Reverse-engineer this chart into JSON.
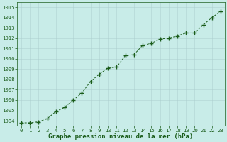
{
  "x": [
    0,
    1,
    2,
    3,
    4,
    5,
    6,
    7,
    8,
    9,
    10,
    11,
    12,
    13,
    14,
    15,
    16,
    17,
    18,
    19,
    20,
    21,
    22,
    23
  ],
  "y": [
    1003.8,
    1003.8,
    1003.9,
    1004.2,
    1004.9,
    1005.3,
    1006.0,
    1006.7,
    1007.8,
    1008.5,
    1009.1,
    1009.2,
    1010.3,
    1010.4,
    1011.3,
    1011.5,
    1011.9,
    1012.0,
    1012.2,
    1012.5,
    1012.5,
    1013.3,
    1014.0,
    1014.6
  ],
  "xlim": [
    -0.5,
    23.5
  ],
  "ylim": [
    1003.5,
    1015.5
  ],
  "yticks": [
    1004,
    1005,
    1006,
    1007,
    1008,
    1009,
    1010,
    1011,
    1012,
    1013,
    1014,
    1015
  ],
  "xticks": [
    0,
    1,
    2,
    3,
    4,
    5,
    6,
    7,
    8,
    9,
    10,
    11,
    12,
    13,
    14,
    15,
    16,
    17,
    18,
    19,
    20,
    21,
    22,
    23
  ],
  "line_color": "#1a5c1a",
  "marker_color": "#1a5c1a",
  "bg_color": "#c8ece8",
  "grid_color": "#aacccc",
  "xlabel": "Graphe pression niveau de la mer (hPa)",
  "xlabel_color": "#1a5c1a",
  "tick_color": "#1a5c1a",
  "label_fontsize": 6.5,
  "tick_fontsize": 5.2
}
